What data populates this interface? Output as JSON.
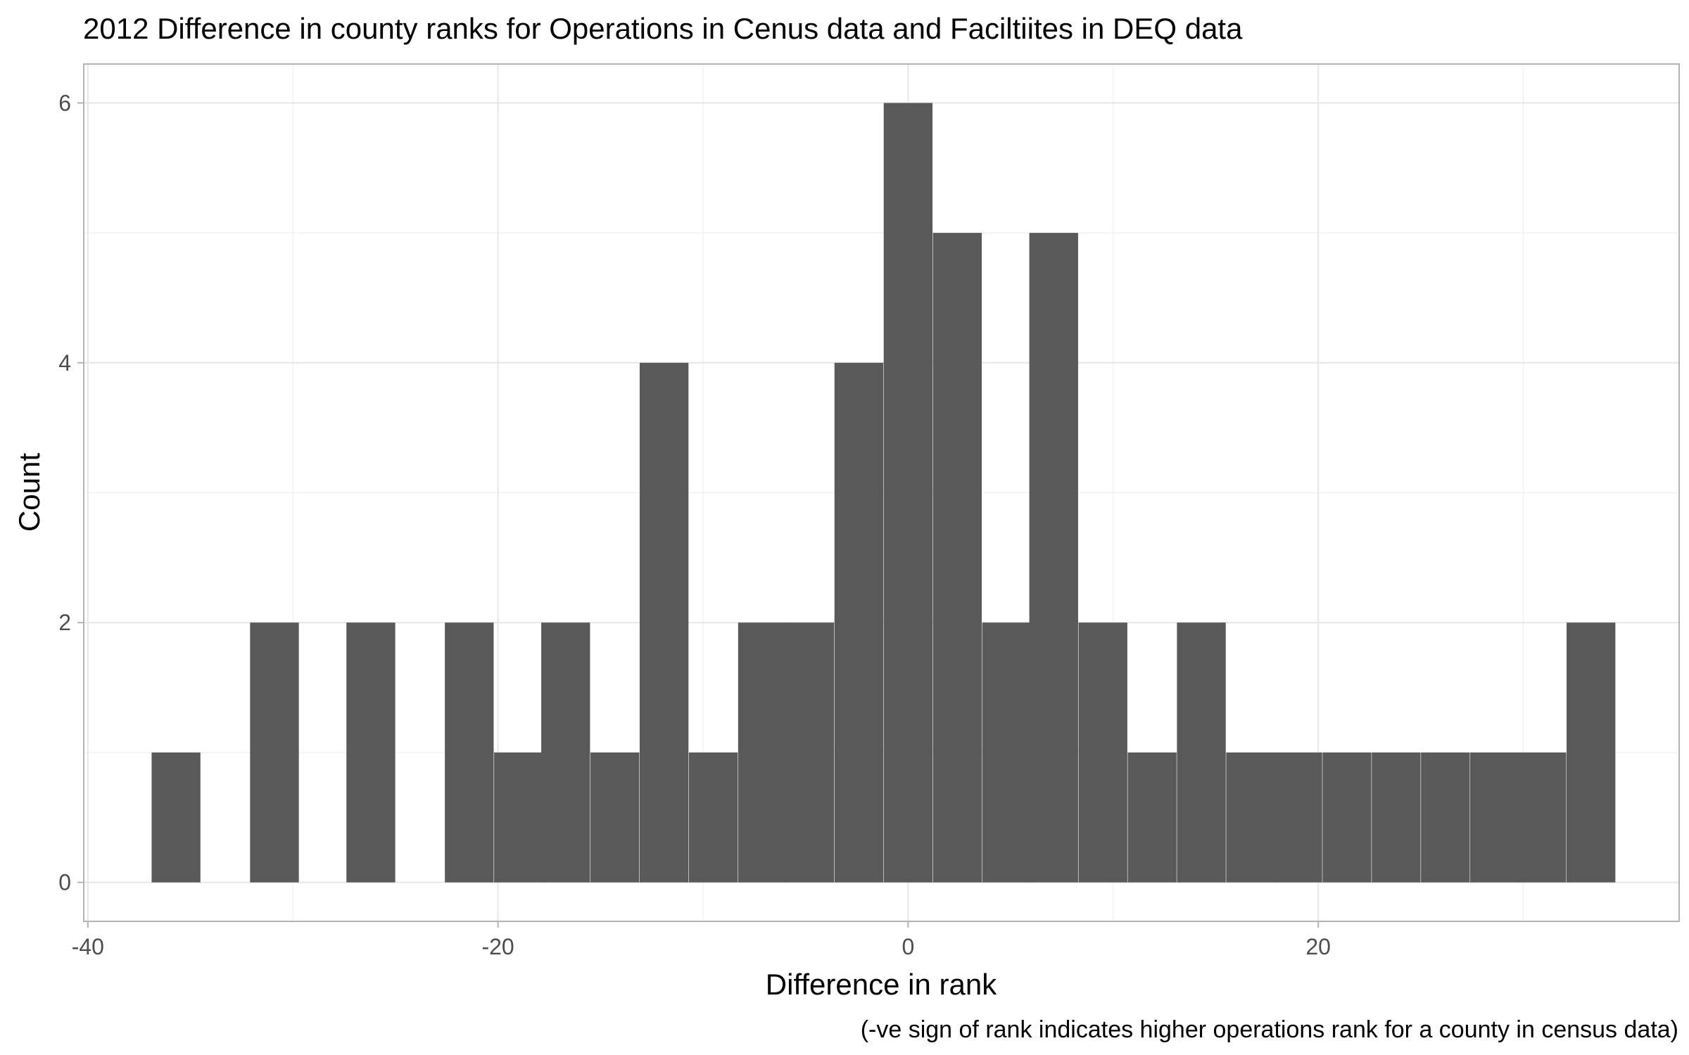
{
  "chart_data": {
    "type": "bar",
    "title": "2012 Difference in county ranks for Operations in Cenus data and Faciltiites in DEQ data",
    "xlabel": "Difference in rank",
    "ylabel": "Count",
    "caption": "(-ve sign of rank indicates higher operations rank for a county in census data)",
    "xlim": [
      -40.2,
      37.6
    ],
    "ylim": [
      -0.3,
      6.3
    ],
    "x_ticks": [
      -40,
      -20,
      0,
      20
    ],
    "x_tick_labels": [
      "-40",
      "-20",
      "0",
      "20"
    ],
    "y_ticks": [
      0,
      2,
      4,
      6
    ],
    "y_tick_labels": [
      "0",
      "2",
      "4",
      "6"
    ],
    "x_minor_ticks": [
      -30,
      -10,
      10,
      30
    ],
    "y_minor_ticks": [
      1,
      3,
      5
    ],
    "grid": true,
    "bar_color": "#595959",
    "bin_width": 2.38,
    "bins": [
      {
        "x": -35.7,
        "count": 1
      },
      {
        "x": -33.3,
        "count": 0
      },
      {
        "x": -30.9,
        "count": 2
      },
      {
        "x": -28.6,
        "count": 0
      },
      {
        "x": -26.2,
        "count": 2
      },
      {
        "x": -23.8,
        "count": 0
      },
      {
        "x": -21.4,
        "count": 2
      },
      {
        "x": -19.0,
        "count": 1
      },
      {
        "x": -16.7,
        "count": 2
      },
      {
        "x": -14.3,
        "count": 1
      },
      {
        "x": -11.9,
        "count": 4
      },
      {
        "x": -9.5,
        "count": 1
      },
      {
        "x": -7.1,
        "count": 2
      },
      {
        "x": -4.8,
        "count": 2
      },
      {
        "x": -2.4,
        "count": 4
      },
      {
        "x": 0.0,
        "count": 6
      },
      {
        "x": 2.4,
        "count": 5
      },
      {
        "x": 4.8,
        "count": 2
      },
      {
        "x": 7.1,
        "count": 5
      },
      {
        "x": 9.5,
        "count": 2
      },
      {
        "x": 11.9,
        "count": 1
      },
      {
        "x": 14.3,
        "count": 2
      },
      {
        "x": 16.7,
        "count": 1
      },
      {
        "x": 19.0,
        "count": 1
      },
      {
        "x": 21.4,
        "count": 1
      },
      {
        "x": 23.8,
        "count": 1
      },
      {
        "x": 26.2,
        "count": 1
      },
      {
        "x": 28.6,
        "count": 1
      },
      {
        "x": 30.9,
        "count": 1
      },
      {
        "x": 33.3,
        "count": 2
      }
    ]
  }
}
